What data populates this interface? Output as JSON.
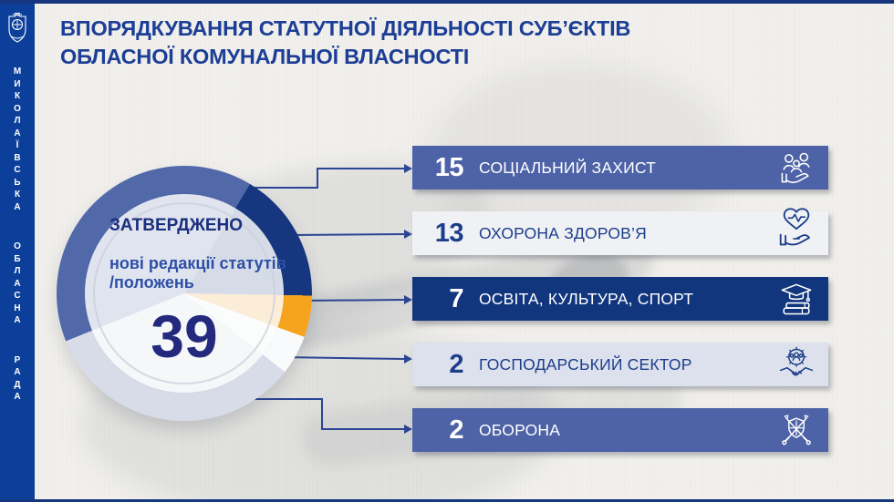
{
  "app": {
    "background": "#f1f0ec",
    "frame_line_color": "#16377f",
    "accent_navy": "#16377f",
    "accent_blue": "#4e63a7",
    "accent_orange": "#f6a41e",
    "connector_color": "#2c4494"
  },
  "sidebar": {
    "background": "#0c3f9a",
    "organization": "МИКОЛАЇВСЬКА ОБЛАСНА РАДА",
    "words": [
      "МИКОЛАЇВСЬКА",
      "ОБЛАСНА",
      "РАДА"
    ],
    "logo_icon": "mykolaiv-regional-council-crest"
  },
  "title": {
    "line1": "ВПОРЯДКУВАННЯ СТАТУТНОЇ ДІЯЛЬНОСТІ СУБ’ЄКТІВ",
    "line2": "ОБЛАСНОЇ КОМУНАЛЬНОЇ ВЛАСНОСТІ",
    "color": "#1d3e96"
  },
  "chart_data": {
    "type": "pie",
    "subtype": "donut",
    "title": "ЗАТВЕРДЖЕНО",
    "center": {
      "status_label": "ЗАТВЕРДЖЕНО",
      "description": "нові редакції статутів /положень",
      "total": 39
    },
    "categories": [
      "СОЦІАЛЬНИЙ ЗАХИСТ",
      "ОХОРОНА ЗДОРОВ’Я",
      "ОСВІТА, КУЛЬТУРА, СПОРТ",
      "ГОСПОДАРСЬКИЙ СЕКТОР",
      "ОБОРОНА"
    ],
    "values": [
      15,
      13,
      7,
      2,
      2
    ],
    "colors": [
      "#5168a9",
      "#16377f",
      "#f6a41e",
      "#f9fafc",
      "#d7dce8"
    ],
    "display_segments": [
      {
        "category": "СОЦІАЛЬНИЙ ЗАХИСТ",
        "value": 15,
        "color": "#5168a9",
        "start": 248,
        "end": 31
      },
      {
        "category": "ОХОРОНА ЗДОРОВ’Я",
        "value": 13,
        "color": "#16377f",
        "start": 31,
        "end": 91
      },
      {
        "category": "ОСВІТА, КУЛЬТУРА, СПОРТ",
        "value": 7,
        "color": "#f6a41e",
        "start": 91,
        "end": 110
      },
      {
        "category": "ГОСПОДАРСЬКИЙ СЕКТОР",
        "value": 2,
        "color": "#f9fafc",
        "start": 110,
        "end": 128
      },
      {
        "category": "ОБОРОНА",
        "value": 2,
        "color": "#d7dce8",
        "start": 128,
        "end": 248
      }
    ],
    "legend_position": "right",
    "annotations": "callout lines with dots link ring segments to category bars"
  },
  "list": {
    "rows": [
      {
        "value": "15",
        "label": "СОЦІАЛЬНИЙ ЗАХИСТ",
        "icon": "family-in-hand-icon",
        "bg": "#4e63a7",
        "fg": "#ffffff"
      },
      {
        "value": "13",
        "label": "ОХОРОНА ЗДОРОВ’Я",
        "icon": "heart-pulse-hand-icon",
        "bg": "#eff1f5",
        "fg": "#1c3d8a"
      },
      {
        "value": "7",
        "label": "ОСВІТА, КУЛЬТУРА, СПОРТ",
        "icon": "graduation-books-icon",
        "bg": "#12367e",
        "fg": "#ffffff"
      },
      {
        "value": "2",
        "label": "ГОСПОДАРСЬКИЙ СЕКТОР",
        "icon": "gear-handshake-icon",
        "bg": "#dce1ed",
        "fg": "#1c3d8a"
      },
      {
        "value": "2",
        "label": "ОБОРОНА",
        "icon": "shield-swords-icon",
        "bg": "#4e63a7",
        "fg": "#ffffff"
      }
    ]
  }
}
